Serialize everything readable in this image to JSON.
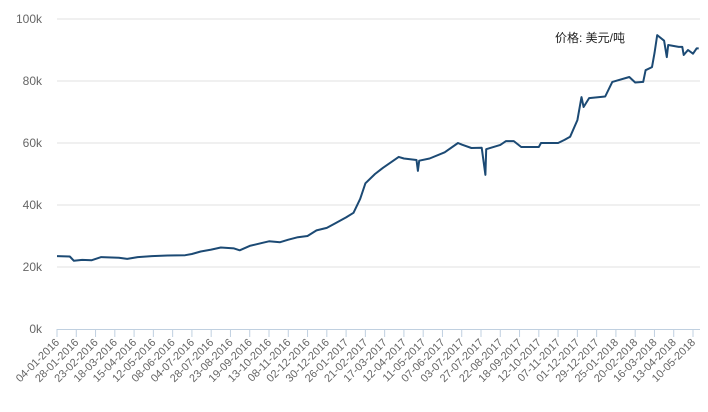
{
  "chart_data": {
    "type": "line",
    "title": "",
    "xlabel": "",
    "ylabel": "",
    "annotation": "价格: 美元/吨",
    "ylim": [
      0,
      100000
    ],
    "yticks": [
      0,
      20000,
      40000,
      60000,
      80000,
      100000
    ],
    "ytick_labels": [
      "0k",
      "20k",
      "40k",
      "60k",
      "80k",
      "100k"
    ],
    "grid": "horizontal",
    "line_color": "#1c4a74",
    "xtick_labels": [
      "04-01-2016",
      "28-01-2016",
      "23-02-2016",
      "18-03-2016",
      "15-04-2016",
      "12-05-2016",
      "08-06-2016",
      "04-07-2016",
      "28-07-2016",
      "23-08-2016",
      "19-09-2016",
      "13-10-2016",
      "08-11-2016",
      "02-12-2016",
      "30-12-2016",
      "26-01-2017",
      "21-02-2017",
      "17-03-2017",
      "12-04-2017",
      "11-05-2017",
      "07-06-2017",
      "03-07-2017",
      "27-07-2017",
      "22-08-2017",
      "18-09-2017",
      "12-10-2017",
      "07-11-2017",
      "01-12-2017",
      "29-12-2017",
      "25-01-2018",
      "20-02-2018",
      "16-03-2018",
      "13-04-2018",
      "10-05-2018"
    ],
    "series": [
      {
        "points": [
          [
            "2016-01-04",
            23500
          ],
          [
            "2016-01-20",
            23400
          ],
          [
            "2016-01-25",
            22000
          ],
          [
            "2016-02-05",
            22300
          ],
          [
            "2016-02-18",
            22200
          ],
          [
            "2016-03-01",
            23200
          ],
          [
            "2016-03-24",
            23000
          ],
          [
            "2016-04-05",
            22600
          ],
          [
            "2016-04-20",
            23200
          ],
          [
            "2016-05-10",
            23500
          ],
          [
            "2016-06-01",
            23700
          ],
          [
            "2016-06-25",
            23800
          ],
          [
            "2016-07-04",
            24200
          ],
          [
            "2016-07-15",
            25000
          ],
          [
            "2016-07-28",
            25600
          ],
          [
            "2016-08-10",
            26300
          ],
          [
            "2016-08-28",
            26000
          ],
          [
            "2016-09-05",
            25400
          ],
          [
            "2016-09-19",
            26800
          ],
          [
            "2016-10-05",
            27800
          ],
          [
            "2016-10-13",
            28300
          ],
          [
            "2016-10-28",
            28000
          ],
          [
            "2016-11-08",
            28800
          ],
          [
            "2016-11-20",
            29600
          ],
          [
            "2016-12-02",
            30000
          ],
          [
            "2016-12-15",
            31800
          ],
          [
            "2016-12-30",
            32600
          ],
          [
            "2017-01-10",
            34000
          ],
          [
            "2017-01-26",
            36000
          ],
          [
            "2017-02-05",
            37500
          ],
          [
            "2017-02-14",
            42000
          ],
          [
            "2017-02-21",
            47000
          ],
          [
            "2017-03-05",
            50000
          ],
          [
            "2017-03-15",
            52000
          ],
          [
            "2017-04-05",
            55500
          ],
          [
            "2017-04-12",
            55000
          ],
          [
            "2017-05-01",
            54500
          ],
          [
            "2017-05-03",
            51000
          ],
          [
            "2017-05-05",
            54300
          ],
          [
            "2017-05-20",
            55000
          ],
          [
            "2017-06-10",
            57000
          ],
          [
            "2017-06-28",
            60000
          ],
          [
            "2017-07-03",
            59500
          ],
          [
            "2017-07-15",
            58400
          ],
          [
            "2017-07-28",
            58500
          ],
          [
            "2017-08-02",
            49700
          ],
          [
            "2017-08-03",
            58000
          ],
          [
            "2017-08-22",
            59400
          ],
          [
            "2017-08-30",
            60600
          ],
          [
            "2017-09-10",
            60600
          ],
          [
            "2017-09-20",
            58700
          ],
          [
            "2017-10-12",
            58700
          ],
          [
            "2017-10-15",
            60000
          ],
          [
            "2017-11-07",
            60000
          ],
          [
            "2017-11-15",
            61000
          ],
          [
            "2017-11-22",
            62000
          ],
          [
            "2017-12-01",
            67400
          ],
          [
            "2017-12-07",
            74800
          ],
          [
            "2017-12-10",
            71600
          ],
          [
            "2017-12-18",
            74500
          ],
          [
            "2018-01-10",
            75000
          ],
          [
            "2018-01-20",
            79700
          ],
          [
            "2018-02-12",
            81300
          ],
          [
            "2018-02-20",
            79500
          ],
          [
            "2018-03-02",
            79700
          ],
          [
            "2018-03-05",
            83500
          ],
          [
            "2018-03-13",
            84500
          ],
          [
            "2018-03-16",
            89000
          ],
          [
            "2018-03-20",
            94800
          ],
          [
            "2018-03-30",
            93000
          ],
          [
            "2018-04-03",
            87700
          ],
          [
            "2018-04-05",
            91600
          ],
          [
            "2018-04-20",
            91000
          ],
          [
            "2018-04-25",
            91000
          ],
          [
            "2018-04-27",
            88400
          ],
          [
            "2018-05-03",
            90000
          ],
          [
            "2018-05-10",
            88800
          ],
          [
            "2018-05-15",
            90500
          ],
          [
            "2018-05-18",
            90500
          ]
        ]
      }
    ]
  }
}
